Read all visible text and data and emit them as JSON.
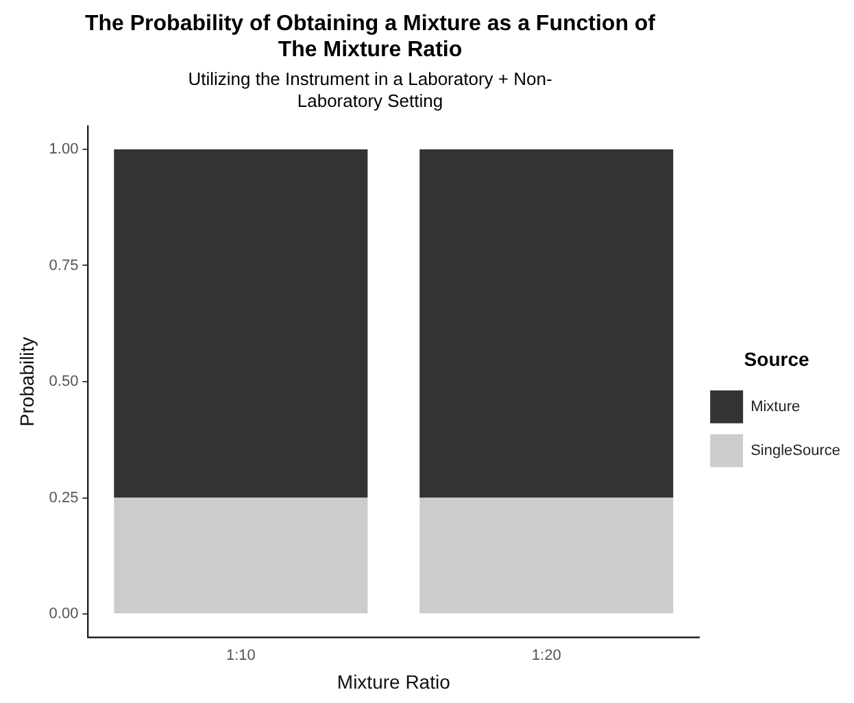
{
  "chart_data": {
    "type": "bar",
    "title": "The Probability of Obtaining a Mixture as a Function of The Mixture Ratio",
    "subtitle": "Utilizing the Instrument in a Laboratory + Non-Laboratory Setting",
    "xlabel": "Mixture Ratio",
    "ylabel": "Probability",
    "legend_title": "Source",
    "legend": "right",
    "stacked": true,
    "grid": false,
    "categories": [
      "1:10",
      "1:20"
    ],
    "series": [
      {
        "name": "SingleSource",
        "color": "#cccccc",
        "values": [
          0.25,
          0.25
        ]
      },
      {
        "name": "Mixture",
        "color": "#333333",
        "values": [
          0.75,
          0.75
        ]
      }
    ],
    "ylim": [
      -0.05,
      1.05
    ],
    "yticks": [
      {
        "value": 0,
        "label": "0.00"
      },
      {
        "value": 0.25,
        "label": "0.25"
      },
      {
        "value": 0.5,
        "label": "0.50"
      },
      {
        "value": 0.75,
        "label": "0.75"
      },
      {
        "value": 1,
        "label": "1.00"
      }
    ]
  }
}
